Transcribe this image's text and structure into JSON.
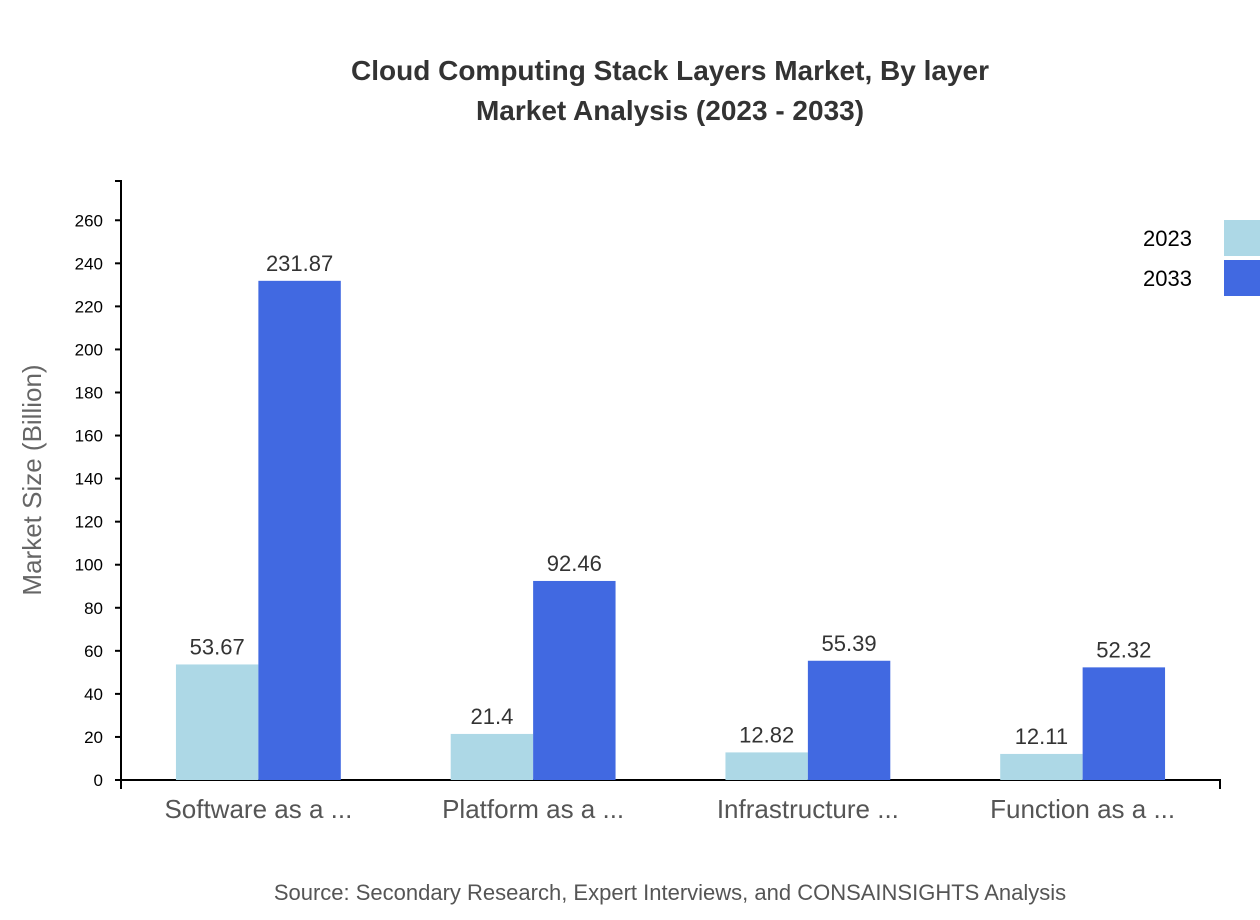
{
  "chart_data": {
    "type": "bar",
    "title": "Cloud Computing Stack Layers Market, By layer",
    "subtitle": "Market Analysis (2023 - 2033)",
    "xlabel": "",
    "ylabel": "Market Size (Billion)",
    "categories": [
      "Software as a ...",
      "Platform as a ...",
      "Infrastructure ...",
      "Function as a ..."
    ],
    "series": [
      {
        "name": "2023",
        "color": "#add8e6",
        "values": [
          53.67,
          21.4,
          12.82,
          12.11
        ]
      },
      {
        "name": "2033",
        "color": "#4169e1",
        "values": [
          231.87,
          92.46,
          55.39,
          52.32
        ]
      }
    ],
    "ylim": [
      0,
      278.24
    ],
    "yticks": [
      0,
      20,
      40,
      60,
      80,
      100,
      120,
      140,
      160,
      180,
      200,
      220,
      240,
      260
    ],
    "grid": false,
    "legend_position": "top-right",
    "source": "Source: Secondary Research, Expert Interviews, and CONSAINSIGHTS Analysis"
  }
}
